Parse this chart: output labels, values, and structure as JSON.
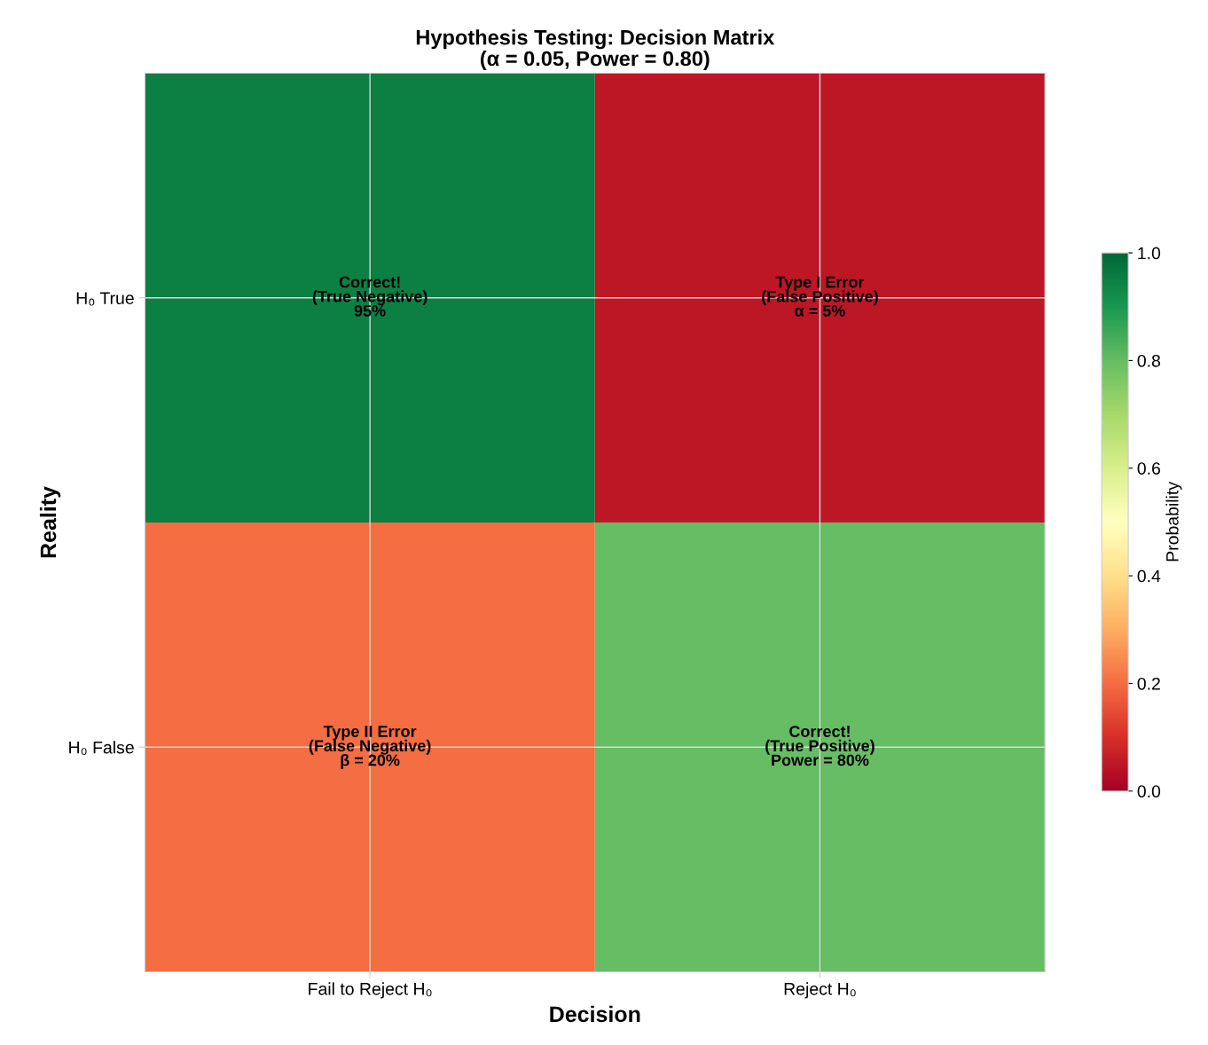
{
  "chart_data": {
    "type": "heatmap",
    "title": "Hypothesis Testing: Decision Matrix\n(α = 0.05, Power = 0.80)",
    "xlabel": "Decision",
    "ylabel": "Reality",
    "clabel": "Probability",
    "categories": [
      "Fail to Reject H₀",
      "Reject H₀"
    ],
    "y_categories": [
      "H₀ True",
      "H₀ False"
    ],
    "cells": [
      [
        0.95,
        0.05
      ],
      [
        0.2,
        0.8
      ]
    ],
    "cell_labels": [
      [
        "Correct!\n(True Negative)\n95%",
        "Type I Error\n(False Positive)\nα = 5%"
      ],
      [
        "Type II Error\n(False Negative)\nβ = 20%",
        "Correct!\n(True Positive)\nPower = 80%"
      ]
    ],
    "clim": [
      0,
      1
    ],
    "cticks": [
      {
        "value": 0,
        "label": "0.0"
      },
      0.2,
      0.4,
      0.6,
      0.8,
      {
        "value": 1,
        "label": "1.0"
      }
    ],
    "grid": true
  }
}
